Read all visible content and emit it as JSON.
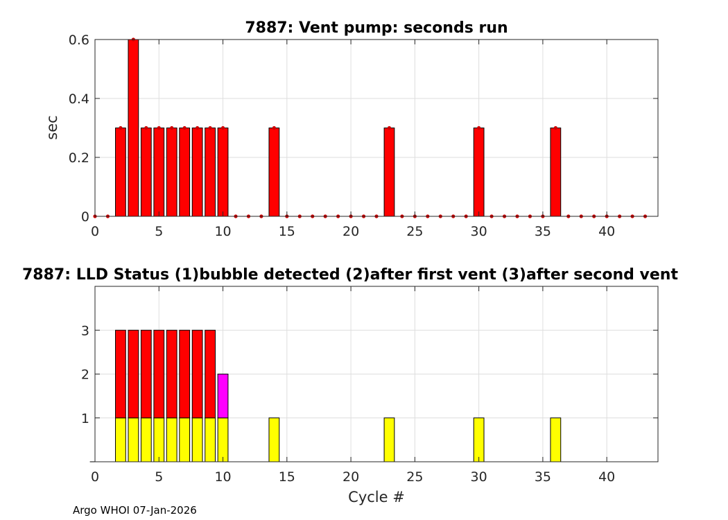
{
  "footer": "Argo WHOI 07-Jan-2026",
  "colors": {
    "pump_bar": "#ff0000",
    "pump_marker": "#cc0000",
    "lld_1": "#ffff00",
    "lld_2": "#ff00ff",
    "lld_3": "#ff0000"
  },
  "chart_data": [
    {
      "type": "bar",
      "title": "7887: Vent pump: seconds run",
      "xlabel": "",
      "ylabel": "sec",
      "xlim": [
        0,
        44
      ],
      "ylim": [
        0,
        0.6
      ],
      "xticks": [
        0,
        5,
        10,
        15,
        20,
        25,
        30,
        35,
        40
      ],
      "yticks": [
        0,
        0.2,
        0.4,
        0.6
      ],
      "ytick_labels": [
        "0",
        "0.2",
        "0.4",
        "0.6"
      ],
      "grid": true,
      "x": [
        0,
        1,
        2,
        3,
        4,
        5,
        6,
        7,
        8,
        9,
        10,
        11,
        12,
        13,
        14,
        15,
        16,
        17,
        18,
        19,
        20,
        21,
        22,
        23,
        24,
        25,
        26,
        27,
        28,
        29,
        30,
        31,
        32,
        33,
        34,
        35,
        36,
        37,
        38,
        39,
        40,
        41,
        42,
        43
      ],
      "values": [
        0,
        0,
        0.3,
        0.6,
        0.3,
        0.3,
        0.3,
        0.3,
        0.3,
        0.3,
        0.3,
        0,
        0,
        0,
        0.3,
        0,
        0,
        0,
        0,
        0,
        0,
        0,
        0,
        0.3,
        0,
        0,
        0,
        0,
        0,
        0,
        0.3,
        0,
        0,
        0,
        0,
        0,
        0.3,
        0,
        0,
        0,
        0,
        0,
        0,
        0
      ]
    },
    {
      "type": "bar",
      "title": "7887: LLD Status   (1)bubble detected   (2)after first vent  (3)after second vent",
      "xlabel": "Cycle #",
      "ylabel": "",
      "xlim": [
        0,
        44
      ],
      "ylim": [
        0,
        4
      ],
      "xticks": [
        0,
        5,
        10,
        15,
        20,
        25,
        30,
        35,
        40
      ],
      "yticks": [
        1,
        2,
        3
      ],
      "ytick_labels": [
        "1",
        "2",
        "3"
      ],
      "grid": true,
      "x": [
        0,
        1,
        2,
        3,
        4,
        5,
        6,
        7,
        8,
        9,
        10,
        11,
        12,
        13,
        14,
        15,
        16,
        17,
        18,
        19,
        20,
        21,
        22,
        23,
        24,
        25,
        26,
        27,
        28,
        29,
        30,
        31,
        32,
        33,
        34,
        35,
        36,
        37,
        38,
        39,
        40,
        41,
        42,
        43
      ],
      "values": [
        0,
        0,
        3,
        3,
        3,
        3,
        3,
        3,
        3,
        3,
        2,
        0,
        0,
        0,
        1,
        0,
        0,
        0,
        0,
        0,
        0,
        0,
        0,
        1,
        0,
        0,
        0,
        0,
        0,
        0,
        1,
        0,
        0,
        0,
        0,
        0,
        1,
        0,
        0,
        0,
        0,
        0,
        0,
        0
      ]
    }
  ]
}
